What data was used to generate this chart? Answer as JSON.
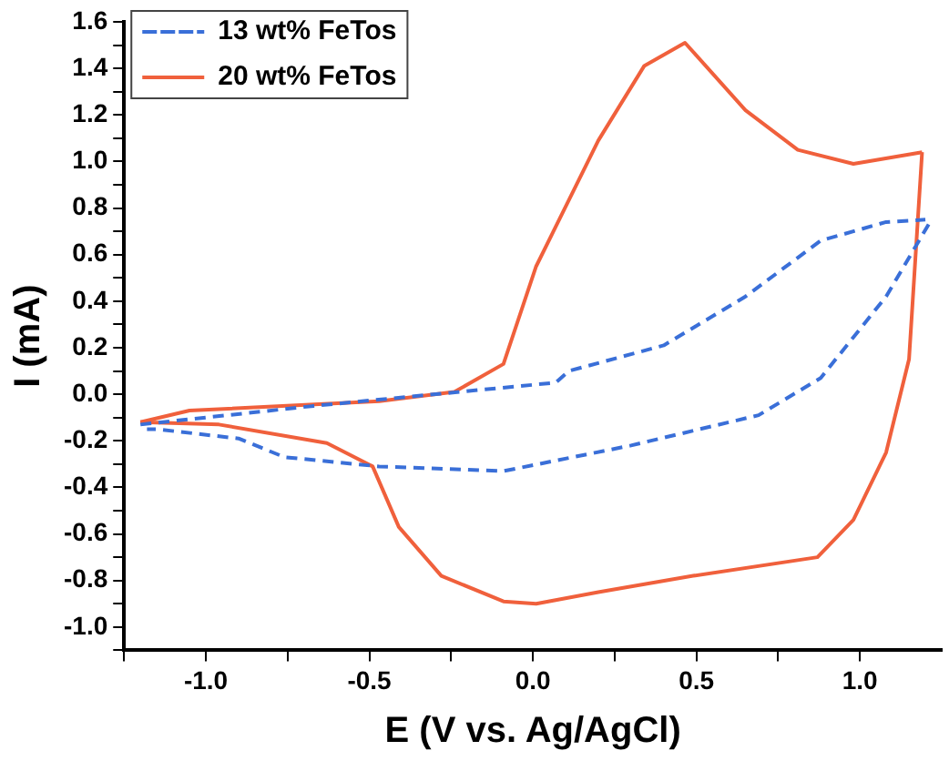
{
  "chart_data": {
    "type": "line",
    "xlabel": "E (V vs. Ag/AgCl)",
    "ylabel": "I (mA)",
    "xlim": [
      -1.25,
      1.25
    ],
    "ylim": [
      -1.1,
      1.6
    ],
    "xticks": [
      {
        "value": -1.25,
        "label": null
      },
      {
        "value": -1,
        "label": "-1.0"
      },
      {
        "value": -0.75,
        "label": null
      },
      {
        "value": -0.5,
        "label": "-0.5"
      },
      {
        "value": -0.25,
        "label": null
      },
      {
        "value": 0,
        "label": "0.0"
      },
      {
        "value": 0.25,
        "label": null
      },
      {
        "value": 0.5,
        "label": "0.5"
      },
      {
        "value": 0.75,
        "label": null
      },
      {
        "value": 1,
        "label": "1.0"
      }
    ],
    "yticks": [
      {
        "value": -1.1,
        "label": null
      },
      {
        "value": -1,
        "label": "-1.0"
      },
      {
        "value": -0.9,
        "label": null
      },
      {
        "value": -0.8,
        "label": "-0.8"
      },
      {
        "value": -0.7,
        "label": null
      },
      {
        "value": -0.6,
        "label": "-0.6"
      },
      {
        "value": -0.5,
        "label": null
      },
      {
        "value": -0.4,
        "label": "-0.4"
      },
      {
        "value": -0.3,
        "label": null
      },
      {
        "value": -0.2,
        "label": "-0.2"
      },
      {
        "value": -0.1,
        "label": null
      },
      {
        "value": 0,
        "label": "0.0"
      },
      {
        "value": 0.1,
        "label": null
      },
      {
        "value": 0.2,
        "label": "0.2"
      },
      {
        "value": 0.3,
        "label": null
      },
      {
        "value": 0.4,
        "label": "0.4"
      },
      {
        "value": 0.5,
        "label": null
      },
      {
        "value": 0.6,
        "label": "0.6"
      },
      {
        "value": 0.7,
        "label": null
      },
      {
        "value": 0.8,
        "label": "0.8"
      },
      {
        "value": 0.9,
        "label": null
      },
      {
        "value": 1,
        "label": "1.0"
      },
      {
        "value": 1.1,
        "label": null
      },
      {
        "value": 1.2,
        "label": "1.2"
      },
      {
        "value": 1.3,
        "label": null
      },
      {
        "value": 1.4,
        "label": "1.4"
      },
      {
        "value": 1.5,
        "label": null
      },
      {
        "value": 1.6,
        "label": "1.6"
      }
    ],
    "grid": false,
    "legend": "top left",
    "marker": "none",
    "series": [
      {
        "name": "13 wt% FeTos",
        "color": "#3a6fd8",
        "line_style": "dashed",
        "x": [
          -1.2,
          -0.67,
          0.07,
          0.11,
          0.4,
          0.65,
          0.88,
          1.08,
          1.2
        ],
        "values": [
          -0.13,
          -0.05,
          0.05,
          0.1,
          0.21,
          0.42,
          0.66,
          0.74,
          0.75
        ]
      },
      {
        "name": "20 wt% FeTos",
        "color": "#f0603c",
        "line_style": "solid",
        "x": [
          -1.2,
          -1.05,
          -0.47,
          -0.24,
          -0.09,
          0.01,
          0.2,
          0.34,
          0.465,
          0.65,
          0.81,
          0.98,
          1.19
        ],
        "values": [
          -0.12,
          -0.07,
          -0.03,
          0.01,
          0.13,
          0.55,
          1.09,
          1.41,
          1.51,
          1.22,
          1.05,
          0.99,
          1.04
        ]
      },
      {
        "color": "#3a6fd8",
        "line_style": "dashed",
        "x": [
          1.21,
          1.08,
          0.88,
          0.69,
          0.3,
          -0.09,
          -0.47,
          -0.76,
          -0.9,
          -1.15,
          -1.18
        ],
        "values": [
          0.73,
          0.42,
          0.07,
          -0.09,
          -0.22,
          -0.33,
          -0.31,
          -0.27,
          -0.19,
          -0.15,
          -0.15
        ]
      },
      {
        "color": "#f0603c",
        "line_style": "solid",
        "x": [
          1.19,
          1.15,
          1.08,
          0.98,
          0.87,
          0.49,
          0.2,
          0.01,
          -0.09,
          -0.28,
          -0.41,
          -0.49,
          -0.63,
          -0.96,
          -1.2
        ],
        "values": [
          1.04,
          0.15,
          -0.25,
          -0.54,
          -0.7,
          -0.78,
          -0.85,
          -0.9,
          -0.89,
          -0.78,
          -0.57,
          -0.31,
          -0.21,
          -0.13,
          -0.12
        ]
      }
    ]
  }
}
